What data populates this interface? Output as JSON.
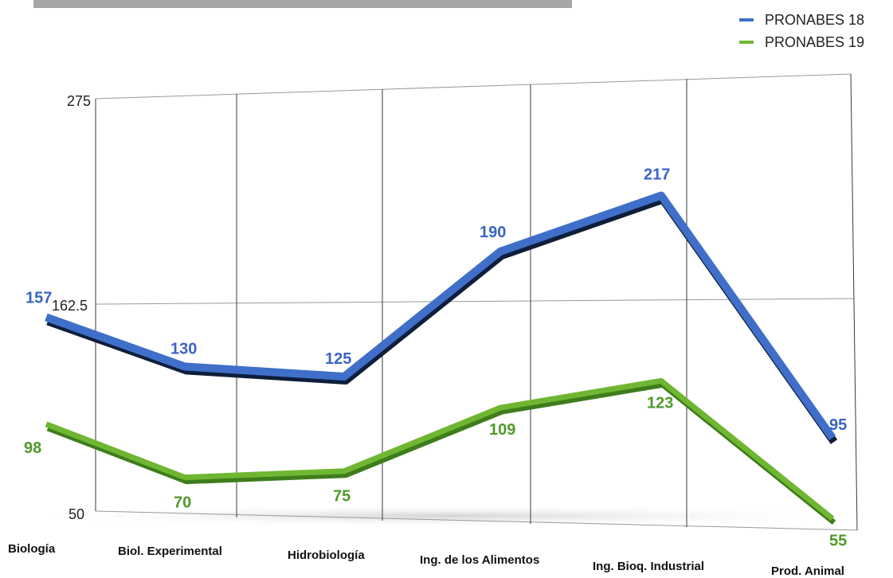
{
  "chart_data": {
    "type": "line",
    "categories": [
      "Biología",
      "Biol. Experimental",
      "Hidrobiología",
      "Ing. de los Alimentos",
      "Ing. Bioq. Industrial",
      "Prod. Animal"
    ],
    "series": [
      {
        "name": "PRONABES 18",
        "color": "#3f6fc9",
        "shadow": "#0f1e3a",
        "values": [
          157,
          130,
          125,
          190,
          217,
          95
        ]
      },
      {
        "name": "PRONABES 19",
        "color": "#6fb632",
        "shadow": "#3e7d1c",
        "values": [
          98,
          70,
          75,
          109,
          123,
          55
        ]
      }
    ],
    "y_ticks": [
      "275",
      "162.5",
      "50"
    ],
    "ylim": [
      50,
      275
    ],
    "legend_position": "top-right",
    "grid": true
  }
}
